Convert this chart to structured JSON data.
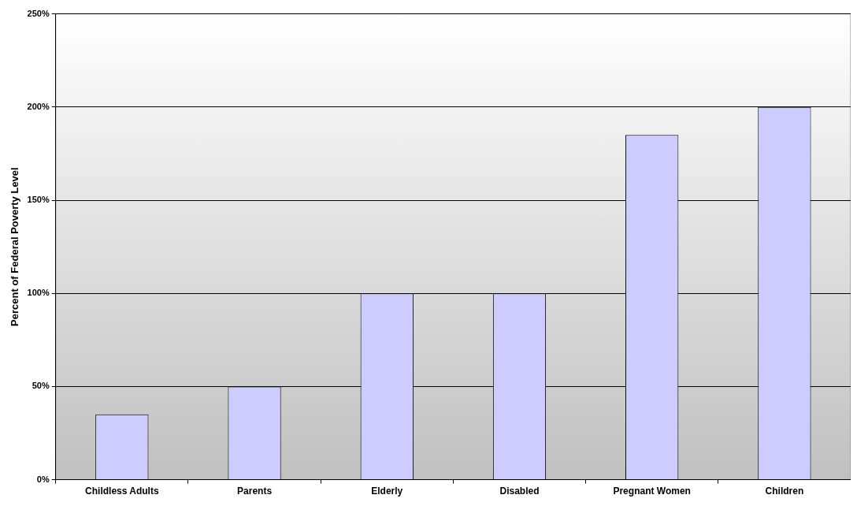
{
  "chart_data": {
    "type": "bar",
    "ylabel": "Percent of Federal Poverty Level",
    "categories": [
      "Childless Adults",
      "Parents",
      "Elderly",
      "Disabled",
      "Pregnant Women",
      "Children"
    ],
    "values": [
      35,
      50,
      100,
      100,
      185,
      200
    ],
    "color": "#ccccff",
    "ylim": [
      0,
      250
    ],
    "yticks": [
      {
        "value": 0,
        "label": "0%"
      },
      {
        "value": 50,
        "label": "50%"
      },
      {
        "value": 100,
        "label": "100%"
      },
      {
        "value": 150,
        "label": "150%"
      },
      {
        "value": 200,
        "label": "200%"
      },
      {
        "value": 250,
        "label": "250%"
      }
    ],
    "grid": "y",
    "legend": false
  }
}
